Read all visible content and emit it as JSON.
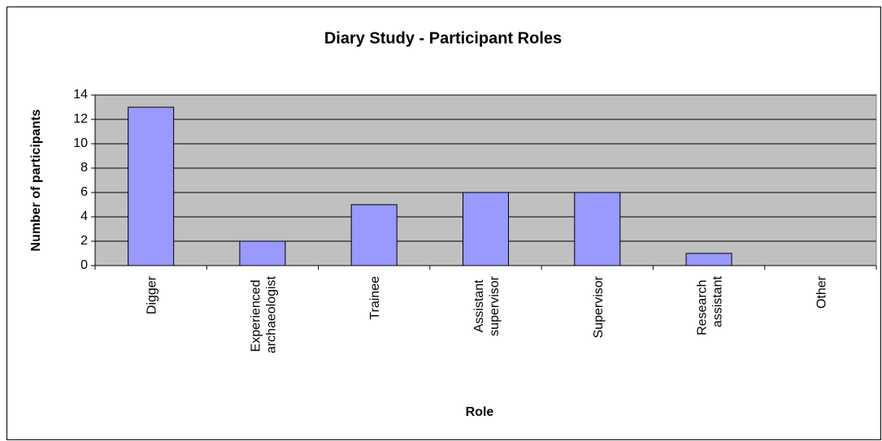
{
  "chart_data": {
    "type": "bar",
    "title": "Diary Study - Participant Roles",
    "x_label": "Role",
    "y_label": "Number of participants",
    "categories": [
      "Digger",
      "Experienced archaeologist",
      "Trainee",
      "Assistant supervisor",
      "Supervisor",
      "Research assistant",
      "Other"
    ],
    "values": [
      13,
      2,
      5,
      6,
      6,
      1,
      0
    ],
    "color": "#9999ff",
    "ylim": [
      0,
      14
    ],
    "yticks": [
      0,
      2,
      4,
      6,
      8,
      10,
      12,
      14
    ],
    "grid": true,
    "plot_background": "#c0c0c0"
  }
}
